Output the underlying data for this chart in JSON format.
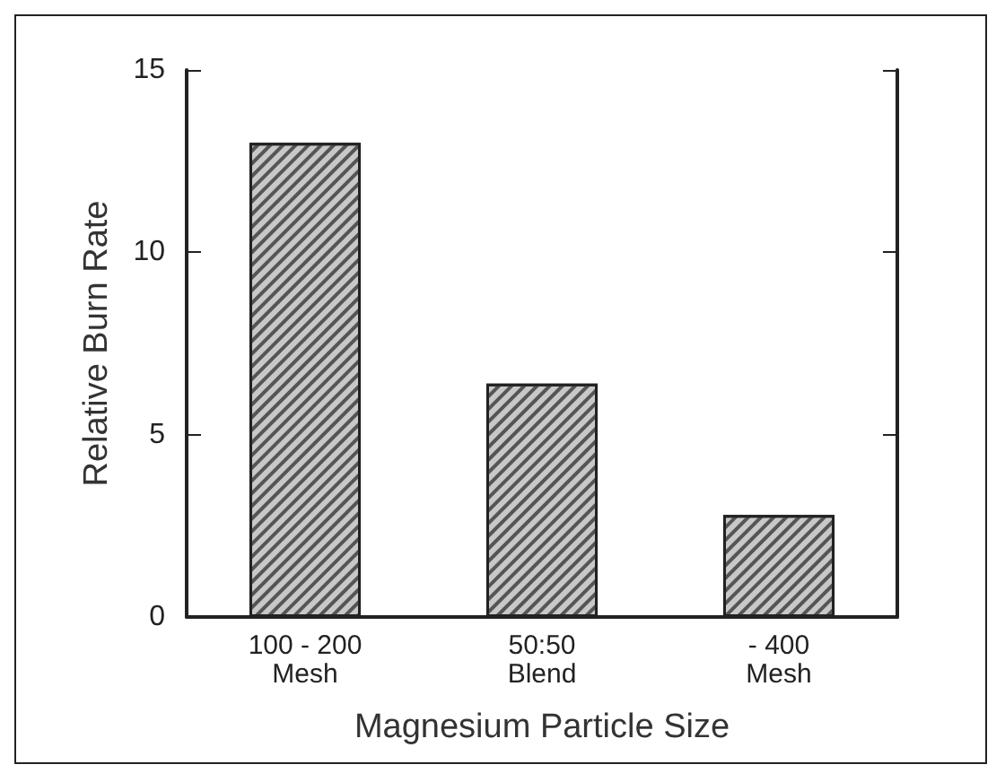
{
  "chart_data": {
    "type": "bar",
    "xlabel": "Magnesium Particle Size",
    "ylabel": "Relative Burn Rate",
    "categories": [
      "100 - 200\nMesh",
      "50:50\nBlend",
      "- 400\nMesh"
    ],
    "values": [
      13,
      6.4,
      2.8
    ],
    "color": "#c8c8c8",
    "ylim": [
      0,
      15
    ],
    "yticks": [
      0,
      5,
      10,
      15
    ],
    "grid": false
  }
}
